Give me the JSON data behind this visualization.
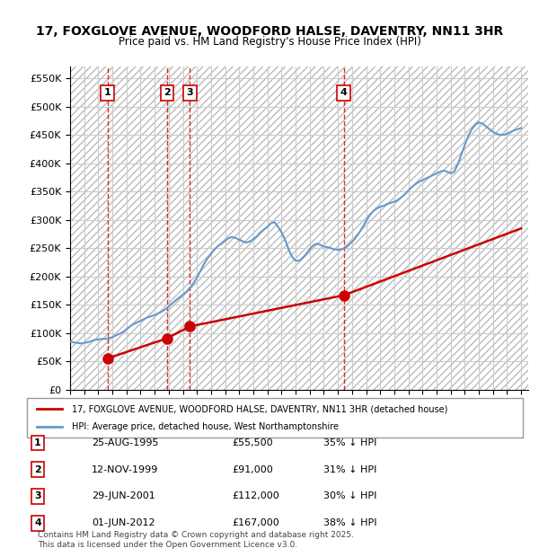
{
  "title": "17, FOXGLOVE AVENUE, WOODFORD HALSE, DAVENTRY, NN11 3HR",
  "subtitle": "Price paid vs. HM Land Registry's House Price Index (HPI)",
  "ylim": [
    0,
    570000
  ],
  "yticks": [
    0,
    50000,
    100000,
    150000,
    200000,
    250000,
    300000,
    350000,
    400000,
    450000,
    500000,
    550000
  ],
  "ytick_labels": [
    "£0",
    "£50K",
    "£100K",
    "£150K",
    "£200K",
    "£250K",
    "£300K",
    "£350K",
    "£400K",
    "£450K",
    "£500K",
    "£550K"
  ],
  "xlim_start": 1993.0,
  "xlim_end": 2025.5,
  "transactions": [
    {
      "label": "1",
      "date": "25-AUG-1995",
      "year": 1995.65,
      "price": 55500,
      "pct": "35%",
      "dir": "↓"
    },
    {
      "label": "2",
      "date": "12-NOV-1999",
      "year": 1999.87,
      "price": 91000,
      "pct": "31%",
      "dir": "↓"
    },
    {
      "label": "3",
      "date": "29-JUN-2001",
      "year": 2001.5,
      "price": 112000,
      "pct": "30%",
      "dir": "↓"
    },
    {
      "label": "4",
      "date": "01-JUN-2012",
      "year": 2012.42,
      "price": 167000,
      "pct": "38%",
      "dir": "↓"
    }
  ],
  "hpi_line_color": "#6699cc",
  "price_line_color": "#cc0000",
  "vline_color": "#cc0000",
  "legend_red_label": "17, FOXGLOVE AVENUE, WOODFORD HALSE, DAVENTRY, NN11 3HR (detached house)",
  "legend_blue_label": "HPI: Average price, detached house, West Northamptonshire",
  "footer": "Contains HM Land Registry data © Crown copyright and database right 2025.\nThis data is licensed under the Open Government Licence v3.0.",
  "hpi_data_x": [
    1993.0,
    1993.25,
    1993.5,
    1993.75,
    1994.0,
    1994.25,
    1994.5,
    1994.75,
    1995.0,
    1995.25,
    1995.5,
    1995.75,
    1996.0,
    1996.25,
    1996.5,
    1996.75,
    1997.0,
    1997.25,
    1997.5,
    1997.75,
    1998.0,
    1998.25,
    1998.5,
    1998.75,
    1999.0,
    1999.25,
    1999.5,
    1999.75,
    2000.0,
    2000.25,
    2000.5,
    2000.75,
    2001.0,
    2001.25,
    2001.5,
    2001.75,
    2002.0,
    2002.25,
    2002.5,
    2002.75,
    2003.0,
    2003.25,
    2003.5,
    2003.75,
    2004.0,
    2004.25,
    2004.5,
    2004.75,
    2005.0,
    2005.25,
    2005.5,
    2005.75,
    2006.0,
    2006.25,
    2006.5,
    2006.75,
    2007.0,
    2007.25,
    2007.5,
    2007.75,
    2008.0,
    2008.25,
    2008.5,
    2008.75,
    2009.0,
    2009.25,
    2009.5,
    2009.75,
    2010.0,
    2010.25,
    2010.5,
    2010.75,
    2011.0,
    2011.25,
    2011.5,
    2011.75,
    2012.0,
    2012.25,
    2012.5,
    2012.75,
    2013.0,
    2013.25,
    2013.5,
    2013.75,
    2014.0,
    2014.25,
    2014.5,
    2014.75,
    2015.0,
    2015.25,
    2015.5,
    2015.75,
    2016.0,
    2016.25,
    2016.5,
    2016.75,
    2017.0,
    2017.25,
    2017.5,
    2017.75,
    2018.0,
    2018.25,
    2018.5,
    2018.75,
    2019.0,
    2019.25,
    2019.5,
    2019.75,
    2020.0,
    2020.25,
    2020.5,
    2020.75,
    2021.0,
    2021.25,
    2021.5,
    2021.75,
    2022.0,
    2022.25,
    2022.5,
    2022.75,
    2023.0,
    2023.25,
    2023.5,
    2023.75,
    2024.0,
    2024.25,
    2024.5,
    2024.75,
    2025.0
  ],
  "hpi_data_y": [
    85000,
    84000,
    83000,
    82000,
    83000,
    84000,
    86000,
    88000,
    89000,
    90000,
    90000,
    91000,
    93000,
    96000,
    99000,
    102000,
    107000,
    112000,
    116000,
    119000,
    122000,
    125000,
    128000,
    130000,
    132000,
    135000,
    138000,
    142000,
    147000,
    153000,
    158000,
    163000,
    168000,
    173000,
    180000,
    188000,
    198000,
    210000,
    222000,
    232000,
    240000,
    248000,
    254000,
    258000,
    263000,
    268000,
    270000,
    268000,
    265000,
    262000,
    260000,
    262000,
    266000,
    271000,
    278000,
    283000,
    288000,
    294000,
    296000,
    288000,
    278000,
    265000,
    248000,
    235000,
    228000,
    228000,
    233000,
    240000,
    248000,
    255000,
    258000,
    256000,
    253000,
    252000,
    250000,
    248000,
    247000,
    248000,
    250000,
    255000,
    261000,
    268000,
    277000,
    287000,
    298000,
    308000,
    315000,
    320000,
    323000,
    325000,
    328000,
    330000,
    332000,
    335000,
    340000,
    345000,
    352000,
    358000,
    363000,
    367000,
    370000,
    373000,
    376000,
    379000,
    382000,
    385000,
    387000,
    385000,
    382000,
    385000,
    398000,
    415000,
    432000,
    448000,
    460000,
    468000,
    472000,
    470000,
    465000,
    460000,
    455000,
    452000,
    450000,
    450000,
    452000,
    455000,
    458000,
    460000,
    462000
  ],
  "price_data_x": [
    1995.65,
    1999.87,
    2001.5,
    2012.42,
    2025.0
  ],
  "price_data_y": [
    55500,
    91000,
    112000,
    167000,
    285000
  ],
  "background_color": "#ffffff",
  "plot_bg_color": "#f0f0f0",
  "hatch_color": "#cccccc"
}
